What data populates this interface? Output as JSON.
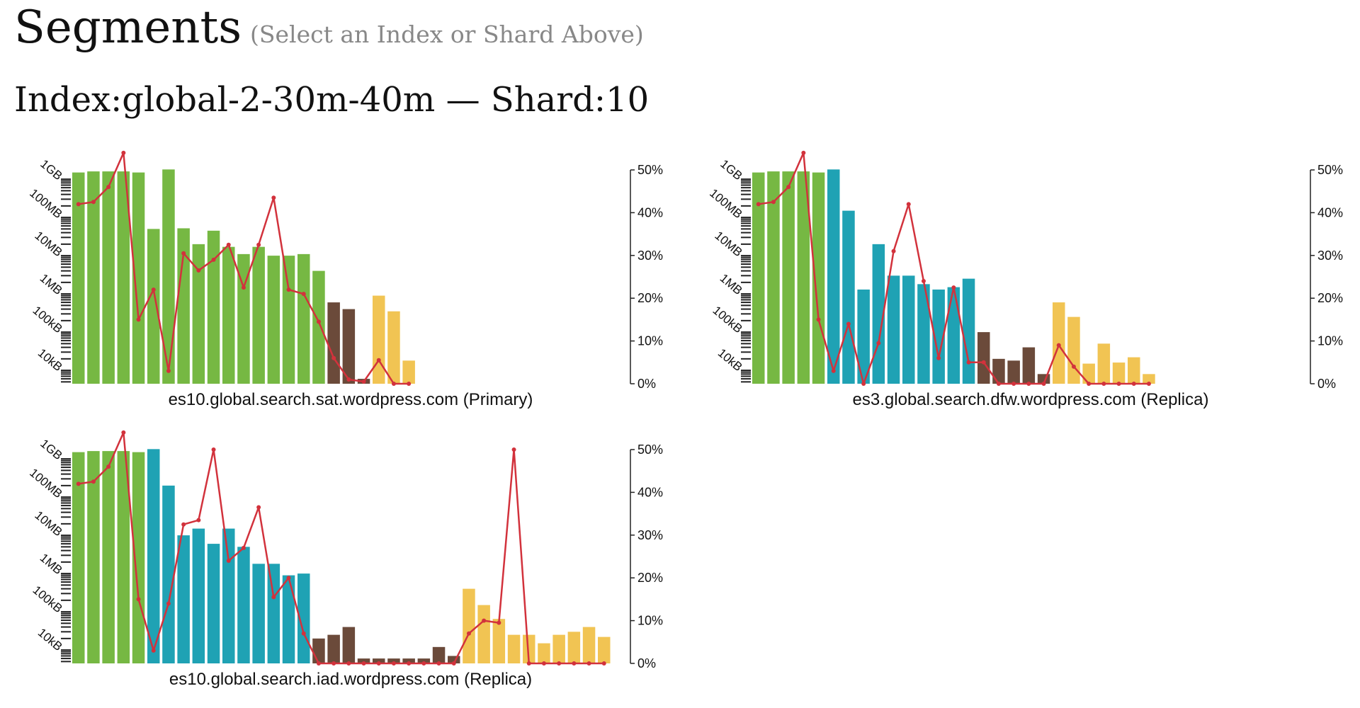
{
  "header": {
    "title": "Segments",
    "subtitle": "(Select an Index or Shard Above)",
    "index_shard": "Index:global-2-30m-40m — Shard:10"
  },
  "legend_colors": {
    "green": "#76b843",
    "teal": "#1fa2b4",
    "brown": "#6b4a3a",
    "yellow": "#f1c453",
    "line": "#d2323c"
  },
  "chart_data": [
    {
      "type": "bar",
      "xlabel": "es10.global.search.sat.wordpress.com (Primary)",
      "y_left_ticks": [
        "1GB",
        "100MB",
        "10MB",
        "1MB",
        "100kB",
        "10kB"
      ],
      "y_right_ticks": [
        "50%",
        "40%",
        "30%",
        "20%",
        "10%",
        "0%"
      ],
      "ylim_right": [
        0,
        50
      ],
      "bars": [
        {
          "size": "1.5GB",
          "color": "green"
        },
        {
          "size": "1.6GB",
          "color": "green"
        },
        {
          "size": "1.6GB",
          "color": "green"
        },
        {
          "size": "1.6GB",
          "color": "green"
        },
        {
          "size": "1.5GB",
          "color": "green"
        },
        {
          "size": "50MB",
          "color": "green"
        },
        {
          "size": "1.8GB",
          "color": "green"
        },
        {
          "size": "52MB",
          "color": "green"
        },
        {
          "size": "20MB",
          "color": "green"
        },
        {
          "size": "45MB",
          "color": "green"
        },
        {
          "size": "17MB",
          "color": "green"
        },
        {
          "size": "11MB",
          "color": "green"
        },
        {
          "size": "17MB",
          "color": "green"
        },
        {
          "size": "10MB",
          "color": "green"
        },
        {
          "size": "10MB",
          "color": "green"
        },
        {
          "size": "11MB",
          "color": "green"
        },
        {
          "size": "4MB",
          "color": "green"
        },
        {
          "size": "600kB",
          "color": "brown"
        },
        {
          "size": "400kB",
          "color": "brown"
        },
        {
          "size": "6kB",
          "color": "brown"
        },
        {
          "size": "900kB",
          "color": "yellow"
        },
        {
          "size": "350kB",
          "color": "yellow"
        },
        {
          "size": "18kB",
          "color": "yellow"
        }
      ],
      "deleted_pct": [
        42,
        42.5,
        46,
        54,
        15,
        22,
        3,
        30.5,
        26.5,
        29,
        32.5,
        22.5,
        32.5,
        43.5,
        22,
        21,
        14.5,
        6,
        1,
        0.5,
        5.5,
        0,
        0
      ]
    },
    {
      "type": "bar",
      "xlabel": "es3.global.search.dfw.wordpress.com (Replica)",
      "y_left_ticks": [
        "1GB",
        "100MB",
        "10MB",
        "1MB",
        "100kB",
        "10kB"
      ],
      "y_right_ticks": [
        "50%",
        "40%",
        "30%",
        "20%",
        "10%",
        "0%"
      ],
      "ylim_right": [
        0,
        50
      ],
      "bars": [
        {
          "size": "1.5GB",
          "color": "green"
        },
        {
          "size": "1.6GB",
          "color": "green"
        },
        {
          "size": "1.6GB",
          "color": "green"
        },
        {
          "size": "1.6GB",
          "color": "green"
        },
        {
          "size": "1.5GB",
          "color": "green"
        },
        {
          "size": "1.8GB",
          "color": "teal"
        },
        {
          "size": "150MB",
          "color": "teal"
        },
        {
          "size": "1.3MB",
          "color": "teal"
        },
        {
          "size": "20MB",
          "color": "teal"
        },
        {
          "size": "3MB",
          "color": "teal"
        },
        {
          "size": "3MB",
          "color": "teal"
        },
        {
          "size": "1.8MB",
          "color": "teal"
        },
        {
          "size": "1.3MB",
          "color": "teal"
        },
        {
          "size": "1.5MB",
          "color": "teal"
        },
        {
          "size": "2.5MB",
          "color": "teal"
        },
        {
          "size": "100kB",
          "color": "brown"
        },
        {
          "size": "20kB",
          "color": "brown"
        },
        {
          "size": "18kB",
          "color": "brown"
        },
        {
          "size": "40kB",
          "color": "brown"
        },
        {
          "size": "8kB",
          "color": "brown"
        },
        {
          "size": "600kB",
          "color": "yellow"
        },
        {
          "size": "250kB",
          "color": "yellow"
        },
        {
          "size": "15kB",
          "color": "yellow"
        },
        {
          "size": "50kB",
          "color": "yellow"
        },
        {
          "size": "16kB",
          "color": "yellow"
        },
        {
          "size": "22kB",
          "color": "yellow"
        },
        {
          "size": "8kB",
          "color": "yellow"
        }
      ],
      "deleted_pct": [
        42,
        42.5,
        46,
        54,
        15,
        3,
        14,
        0,
        9.5,
        31,
        42,
        24,
        6,
        22.5,
        5,
        5,
        0,
        0,
        0,
        0,
        9,
        4,
        0,
        0,
        0,
        0,
        0
      ]
    },
    {
      "type": "bar",
      "xlabel": "es10.global.search.iad.wordpress.com (Replica)",
      "y_left_ticks": [
        "1GB",
        "100MB",
        "10MB",
        "1MB",
        "100kB",
        "10kB"
      ],
      "y_right_ticks": [
        "50%",
        "40%",
        "30%",
        "20%",
        "10%",
        "0%"
      ],
      "ylim_right": [
        0,
        50
      ],
      "bars": [
        {
          "size": "1.5GB",
          "color": "green"
        },
        {
          "size": "1.6GB",
          "color": "green"
        },
        {
          "size": "1.6GB",
          "color": "green"
        },
        {
          "size": "1.6GB",
          "color": "green"
        },
        {
          "size": "1.5GB",
          "color": "green"
        },
        {
          "size": "1.8GB",
          "color": "teal"
        },
        {
          "size": "200MB",
          "color": "teal"
        },
        {
          "size": "10MB",
          "color": "teal"
        },
        {
          "size": "15MB",
          "color": "teal"
        },
        {
          "size": "6MB",
          "color": "teal"
        },
        {
          "size": "15MB",
          "color": "teal"
        },
        {
          "size": "5MB",
          "color": "teal"
        },
        {
          "size": "1.8MB",
          "color": "teal"
        },
        {
          "size": "1.8MB",
          "color": "teal"
        },
        {
          "size": "0.9MB",
          "color": "teal"
        },
        {
          "size": "1MB",
          "color": "teal"
        },
        {
          "size": "20kB",
          "color": "brown"
        },
        {
          "size": "25kB",
          "color": "brown"
        },
        {
          "size": "40kB",
          "color": "brown"
        },
        {
          "size": "6kB",
          "color": "brown"
        },
        {
          "size": "6kB",
          "color": "brown"
        },
        {
          "size": "6kB",
          "color": "brown"
        },
        {
          "size": "6kB",
          "color": "brown"
        },
        {
          "size": "6kB",
          "color": "brown"
        },
        {
          "size": "12kB",
          "color": "brown"
        },
        {
          "size": "7kB",
          "color": "brown"
        },
        {
          "size": "400kB",
          "color": "yellow"
        },
        {
          "size": "150kB",
          "color": "yellow"
        },
        {
          "size": "65kB",
          "color": "yellow"
        },
        {
          "size": "25kB",
          "color": "yellow"
        },
        {
          "size": "25kB",
          "color": "yellow"
        },
        {
          "size": "15kB",
          "color": "yellow"
        },
        {
          "size": "25kB",
          "color": "yellow"
        },
        {
          "size": "30kB",
          "color": "yellow"
        },
        {
          "size": "40kB",
          "color": "yellow"
        },
        {
          "size": "22kB",
          "color": "yellow"
        }
      ],
      "deleted_pct": [
        42,
        42.5,
        46,
        54,
        15,
        3,
        14,
        32.5,
        33.5,
        50,
        24,
        27,
        36.5,
        15.5,
        20,
        7,
        0,
        0,
        0,
        0,
        0,
        0,
        0,
        0,
        0,
        0,
        7,
        10,
        9.5,
        50,
        0,
        0,
        0,
        0,
        0,
        0
      ]
    }
  ]
}
